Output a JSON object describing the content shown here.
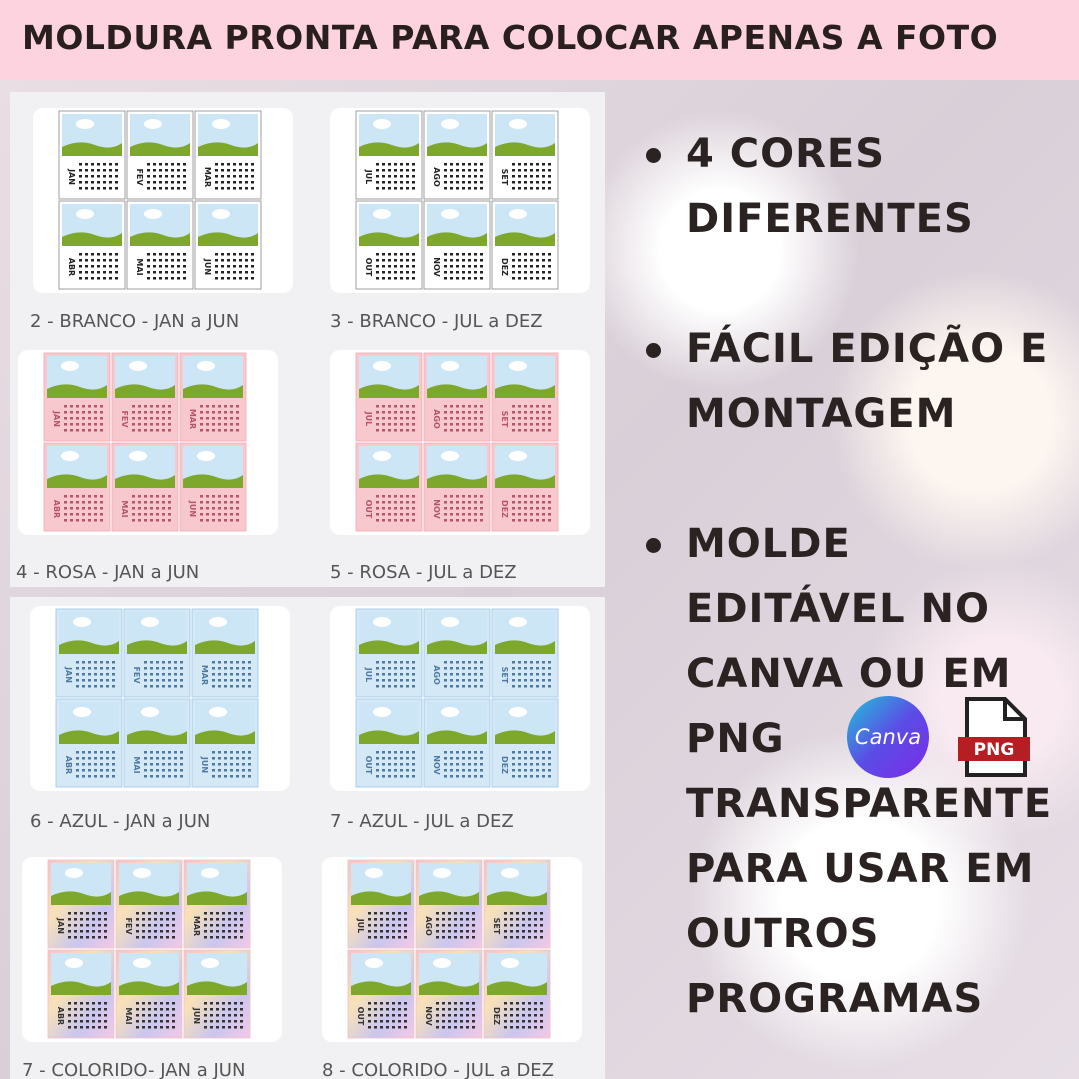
{
  "header": {
    "title": "MOLDURA PRONTA PARA COLOCAR APENAS A FOTO"
  },
  "months": {
    "first_half": [
      "JAN",
      "FEV",
      "MAR",
      "ABR",
      "MAI",
      "JUN"
    ],
    "second_half": [
      "JUL",
      "AGO",
      "SET",
      "OUT",
      "NOV",
      "DEZ"
    ]
  },
  "cards": [
    {
      "caption": "2 - BRANCO - JAN a JUN"
    },
    {
      "caption": "3 - BRANCO - JUL a DEZ"
    },
    {
      "caption": "4 - ROSA - JAN a JUN"
    },
    {
      "caption": "5 - ROSA - JUL a DEZ"
    },
    {
      "caption": "6 - AZUL - JAN a JUN"
    },
    {
      "caption": "7 - AZUL - JUL a DEZ"
    },
    {
      "caption": "7 - COLORIDO- JAN a JUN"
    },
    {
      "caption": "8 - COLORIDO - JUL a DEZ"
    }
  ],
  "bullets": [
    {
      "lines": [
        "4 CORES",
        "DIFERENTES"
      ]
    },
    {
      "lines": [
        "FÁCIL EDIÇÃO E",
        "MONTAGEM"
      ]
    },
    {
      "lines": [
        "MOLDE",
        "EDITÁVEL NO",
        "CANVA OU EM",
        "PNG",
        "TRANSPARENTE",
        "PARA USAR EM",
        "OUTROS",
        "PROGRAMAS"
      ]
    }
  ],
  "logos": {
    "canva": "Canva",
    "png": "PNG"
  }
}
